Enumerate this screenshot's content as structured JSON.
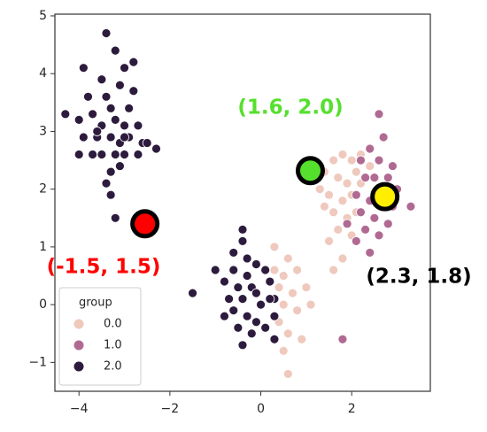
{
  "chart_data": {
    "type": "scatter",
    "xlim": [
      -4.53,
      3.73
    ],
    "ylim": [
      -1.5,
      5.03
    ],
    "xticks": [
      {
        "value": -4,
        "label": "−4"
      },
      {
        "value": -2,
        "label": "−2"
      },
      0,
      2
    ],
    "yticks": [
      {
        "value": -1,
        "label": "−1"
      },
      0,
      1,
      2,
      3,
      4,
      5
    ],
    "grid": false,
    "legend": {
      "title": "group",
      "corner": "lower left"
    },
    "series": [
      {
        "name": "0.0",
        "color": "#efc9bd",
        "x": [
          1.6,
          1.8,
          2.0,
          1.4,
          1.7,
          1.9,
          2.1,
          1.3,
          1.5,
          1.8,
          2.0,
          2.2,
          1.6,
          1.9,
          2.1,
          1.4,
          1.7,
          2.0,
          1.5,
          1.8,
          1.6,
          2.2,
          2.4,
          0.3,
          0.6,
          0.5,
          0.8,
          0.4,
          0.7,
          1.0,
          0.5,
          0.8,
          0.4,
          0.6,
          0.9,
          0.5,
          0.6,
          1.1,
          0.3
        ],
        "y": [
          2.5,
          2.6,
          2.5,
          2.3,
          2.2,
          2.1,
          2.3,
          2.0,
          1.9,
          1.8,
          1.9,
          2.1,
          1.6,
          1.5,
          1.6,
          1.7,
          1.3,
          1.2,
          1.1,
          0.8,
          0.6,
          2.6,
          2.4,
          1.0,
          0.8,
          0.5,
          0.6,
          0.3,
          0.2,
          0.3,
          0.0,
          -0.1,
          -0.3,
          -0.5,
          -0.6,
          -0.8,
          -1.2,
          0.0,
          0.6
        ]
      },
      {
        "name": "1.0",
        "color": "#b06a92",
        "x": [
          2.6,
          2.7,
          2.4,
          2.2,
          2.6,
          2.9,
          2.3,
          2.5,
          2.8,
          3.0,
          2.1,
          2.4,
          2.6,
          2.9,
          2.2,
          2.5,
          2.8,
          3.3,
          2.3,
          2.6,
          1.9,
          2.1,
          2.4,
          1.8
        ],
        "y": [
          3.3,
          2.9,
          2.7,
          2.5,
          2.5,
          2.4,
          2.2,
          2.2,
          2.2,
          2.0,
          1.9,
          1.8,
          1.9,
          1.7,
          1.6,
          1.5,
          1.4,
          1.7,
          1.3,
          1.2,
          1.4,
          1.1,
          0.9,
          -0.6
        ]
      },
      {
        "name": "2.0",
        "color": "#2d1b3e",
        "x": [
          -3.4,
          -3.2,
          -3.9,
          -3.0,
          -2.8,
          -3.5,
          -3.1,
          -2.8,
          -3.8,
          -3.4,
          -3.3,
          -2.9,
          -4.3,
          -4.0,
          -3.7,
          -3.5,
          -3.2,
          -3.0,
          -2.7,
          -3.9,
          -3.6,
          -3.3,
          -3.1,
          -2.9,
          -2.6,
          -3.7,
          -3.5,
          -3.2,
          -3.0,
          -2.7,
          -2.3,
          -4.0,
          -3.3,
          -3.1,
          -3.4,
          -3.3,
          -3.2,
          -2.5,
          -3.6,
          -3.0,
          -0.4,
          -0.4,
          -0.6,
          -0.3,
          -0.1,
          -1.0,
          -0.6,
          -0.3,
          0.1,
          -0.8,
          -0.5,
          -0.2,
          0.2,
          -0.7,
          -0.4,
          -0.1,
          0.3,
          -1.5,
          -0.6,
          -0.3,
          0.0,
          0.3,
          -0.5,
          -0.2,
          0.1,
          -0.4,
          0.3,
          -0.1,
          0.2,
          -0.8
        ],
        "y": [
          4.7,
          4.4,
          4.1,
          4.1,
          4.2,
          3.9,
          3.8,
          3.7,
          3.6,
          3.6,
          3.4,
          3.4,
          3.3,
          3.2,
          3.3,
          3.1,
          3.2,
          3.1,
          3.1,
          2.9,
          2.9,
          2.9,
          2.8,
          2.9,
          2.8,
          2.6,
          2.6,
          2.6,
          2.6,
          2.6,
          2.7,
          2.6,
          2.3,
          2.4,
          2.1,
          1.9,
          1.5,
          2.8,
          3.0,
          2.9,
          1.3,
          1.1,
          0.9,
          0.8,
          0.7,
          0.6,
          0.6,
          0.5,
          0.6,
          0.4,
          0.3,
          0.3,
          0.4,
          0.1,
          0.1,
          0.2,
          0.1,
          0.2,
          -0.1,
          -0.2,
          0.0,
          -0.2,
          -0.4,
          -0.5,
          -0.4,
          -0.7,
          -0.6,
          -0.3,
          0.1,
          -0.2
        ]
      }
    ],
    "markers": [
      {
        "x": -2.55,
        "y": 1.4,
        "color": "#ff0000"
      },
      {
        "x": 1.09,
        "y": 2.32,
        "color": "#55e02d"
      },
      {
        "x": 2.73,
        "y": 1.87,
        "color": "#ffee00"
      }
    ],
    "annotations": [
      {
        "text": "(1.6, 2.0)",
        "color": "#55e02d"
      },
      {
        "text": "(-1.5, 1.5)",
        "color": "#ff0000"
      },
      {
        "text": "(2.3, 1.8)",
        "color": "#000000"
      }
    ]
  }
}
